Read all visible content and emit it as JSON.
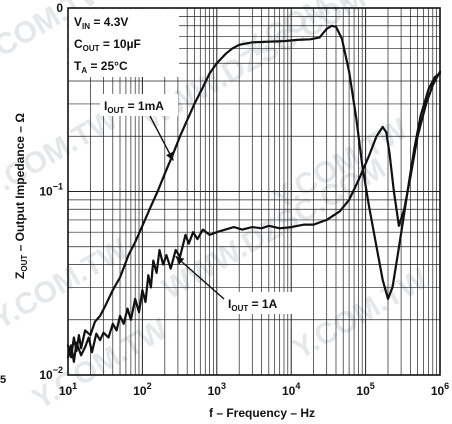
{
  "chart_data": {
    "type": "line",
    "title": "",
    "xlabel": "f – Frequency – Hz",
    "ylabel": "Z",
    "ylabel_sub": "OUT",
    "ylabel_rest": " – Output Impedance – Ω",
    "x_scale": "log",
    "y_scale": "log",
    "xlim": [
      10,
      1000000
    ],
    "ylim": [
      0.01,
      1
    ],
    "grid": true,
    "x_ticks": [
      {
        "base": "10",
        "exp": "1"
      },
      {
        "base": "10",
        "exp": "2"
      },
      {
        "base": "10",
        "exp": "3"
      },
      {
        "base": "10",
        "exp": "4"
      },
      {
        "base": "10",
        "exp": "5"
      },
      {
        "base": "10",
        "exp": "6"
      }
    ],
    "y_ticks": [
      {
        "value": 0.01,
        "base": "10",
        "exp": "−2"
      },
      {
        "value": 0.1,
        "base": "10",
        "exp": "−1"
      },
      {
        "value": 1,
        "base": "0",
        "exp": ""
      }
    ],
    "conditions": [
      {
        "main": "V",
        "sub": "IN",
        "rest": " = 4.3V"
      },
      {
        "main": "C",
        "sub": "OUT",
        "rest": " = 10µF"
      },
      {
        "main": "T",
        "sub": "A",
        "rest": " = 25°C"
      }
    ],
    "annotations": [
      {
        "main": "I",
        "sub": "OUT",
        "rest": " = 1mA",
        "series": 0
      },
      {
        "main": "I",
        "sub": "OUT",
        "rest": " = 1A",
        "series": 1
      }
    ],
    "left_clip_text": "5",
    "series": [
      {
        "name": "IOUT = 1mA",
        "color": "#111111",
        "points": [
          [
            10,
            0.0145
          ],
          [
            11,
            0.0125
          ],
          [
            12,
            0.016
          ],
          [
            13,
            0.0135
          ],
          [
            14,
            0.0165
          ],
          [
            15,
            0.014
          ],
          [
            17,
            0.0175
          ],
          [
            20,
            0.0165
          ],
          [
            23,
            0.0195
          ],
          [
            27,
            0.021
          ],
          [
            32,
            0.024
          ],
          [
            40,
            0.029
          ],
          [
            50,
            0.034
          ],
          [
            65,
            0.045
          ],
          [
            80,
            0.053
          ],
          [
            100,
            0.065
          ],
          [
            130,
            0.083
          ],
          [
            160,
            0.1
          ],
          [
            200,
            0.125
          ],
          [
            250,
            0.155
          ],
          [
            320,
            0.2
          ],
          [
            400,
            0.245
          ],
          [
            500,
            0.3
          ],
          [
            650,
            0.37
          ],
          [
            800,
            0.44
          ],
          [
            1000,
            0.5
          ],
          [
            1300,
            0.56
          ],
          [
            1600,
            0.6
          ],
          [
            2000,
            0.63
          ],
          [
            3000,
            0.65
          ],
          [
            5000,
            0.655
          ],
          [
            8000,
            0.66
          ],
          [
            12000,
            0.67
          ],
          [
            18000,
            0.675
          ],
          [
            24000,
            0.69
          ],
          [
            30000,
            0.77
          ],
          [
            35000,
            0.8
          ],
          [
            40000,
            0.79
          ],
          [
            48000,
            0.68
          ],
          [
            60000,
            0.45
          ],
          [
            75000,
            0.25
          ],
          [
            90000,
            0.14
          ],
          [
            110000,
            0.085
          ],
          [
            140000,
            0.05
          ],
          [
            170000,
            0.033
          ],
          [
            200000,
            0.026
          ],
          [
            230000,
            0.03
          ],
          [
            270000,
            0.045
          ],
          [
            320000,
            0.07
          ],
          [
            380000,
            0.11
          ],
          [
            450000,
            0.17
          ],
          [
            550000,
            0.26
          ],
          [
            700000,
            0.36
          ],
          [
            850000,
            0.42
          ],
          [
            1000000,
            0.44
          ]
        ]
      },
      {
        "name": "IOUT = 1A",
        "color": "#111111",
        "points": [
          [
            10,
            0.0125
          ],
          [
            11,
            0.0145
          ],
          [
            12,
            0.0118
          ],
          [
            13,
            0.015
          ],
          [
            15,
            0.0128
          ],
          [
            17,
            0.0142
          ],
          [
            19,
            0.016
          ],
          [
            21,
            0.0133
          ],
          [
            24,
            0.0168
          ],
          [
            27,
            0.0155
          ],
          [
            30,
            0.017
          ],
          [
            35,
            0.016
          ],
          [
            40,
            0.019
          ],
          [
            45,
            0.0175
          ],
          [
            50,
            0.021
          ],
          [
            56,
            0.019
          ],
          [
            63,
            0.023
          ],
          [
            70,
            0.02
          ],
          [
            80,
            0.026
          ],
          [
            90,
            0.022
          ],
          [
            100,
            0.029
          ],
          [
            110,
            0.025
          ],
          [
            120,
            0.035
          ],
          [
            130,
            0.03
          ],
          [
            140,
            0.042
          ],
          [
            155,
            0.036
          ],
          [
            170,
            0.048
          ],
          [
            190,
            0.04
          ],
          [
            210,
            0.045
          ],
          [
            240,
            0.038
          ],
          [
            280,
            0.048
          ],
          [
            320,
            0.044
          ],
          [
            380,
            0.058
          ],
          [
            420,
            0.052
          ],
          [
            480,
            0.06
          ],
          [
            550,
            0.055
          ],
          [
            650,
            0.062
          ],
          [
            800,
            0.058
          ],
          [
            1000,
            0.06
          ],
          [
            1300,
            0.062
          ],
          [
            1700,
            0.064
          ],
          [
            2200,
            0.062
          ],
          [
            3000,
            0.064
          ],
          [
            4000,
            0.063
          ],
          [
            5000,
            0.065
          ],
          [
            7000,
            0.063
          ],
          [
            10000,
            0.064
          ],
          [
            15000,
            0.066
          ],
          [
            20000,
            0.066
          ],
          [
            30000,
            0.07
          ],
          [
            45000,
            0.078
          ],
          [
            60000,
            0.09
          ],
          [
            80000,
            0.115
          ],
          [
            110000,
            0.155
          ],
          [
            140000,
            0.2
          ],
          [
            170000,
            0.225
          ],
          [
            190000,
            0.21
          ],
          [
            210000,
            0.16
          ],
          [
            240000,
            0.1
          ],
          [
            280000,
            0.065
          ],
          [
            330000,
            0.08
          ],
          [
            400000,
            0.12
          ],
          [
            500000,
            0.2
          ],
          [
            650000,
            0.3
          ],
          [
            800000,
            0.38
          ],
          [
            1000000,
            0.45
          ]
        ]
      }
    ]
  },
  "watermarks": [
    "Y.COM.TW",
    "Y.COM.TW",
    "Y.COM.TW",
    "WWW.DZSC.COM",
    "WWW.DZSC.COM",
    "Y.COM.TW",
    "Y.COM.TW",
    "Y.COM.TW",
    "Y.COM.TW"
  ]
}
